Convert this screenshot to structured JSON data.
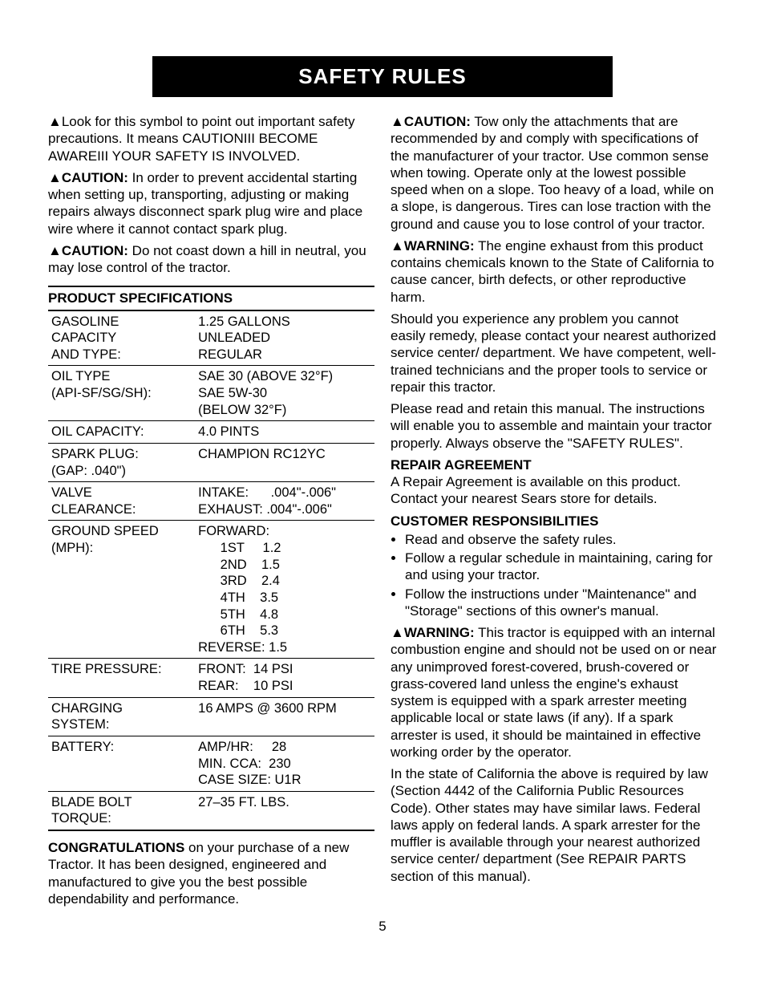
{
  "header": "SAFETY RULES",
  "page_number": "5",
  "left": {
    "intro": "Look for this symbol to point out important safety precautions. It means CAUTIONIII BECOME AWAREIII YOUR SAFETY IS INVOLVED.",
    "caution1_label": "CAUTION:",
    "caution1": " In order to prevent accidental starting when setting up, transporting, adjusting or making repairs always disconnect spark plug wire and place wire where it cannot contact spark plug.",
    "caution2_label": "CAUTION:",
    "caution2": " Do not coast down a hill in neutral, you may lose control of the tractor.",
    "spec_heading": "PRODUCT SPECIFICATIONS",
    "specs": [
      {
        "label": "GASOLINE\nCAPACITY\nAND TYPE:",
        "value": "1.25 GALLONS\nUNLEADED\nREGULAR"
      },
      {
        "label": "OIL TYPE\n(API-SF/SG/SH):",
        "value": "SAE 30 (ABOVE 32°F)\nSAE 5W-30\n(BELOW 32°F)"
      },
      {
        "label": "OIL CAPACITY:",
        "value": "4.0 PINTS"
      },
      {
        "label": "SPARK PLUG:\n(GAP: .040\")",
        "value": "CHAMPION RC12YC"
      },
      {
        "label": "VALVE\nCLEARANCE:",
        "value": "INTAKE:      .004\"-.006\"\nEXHAUST: .004\"-.006\""
      },
      {
        "label": "GROUND SPEED\n(MPH):",
        "value": "FORWARD:\n      1ST     1.2\n      2ND    1.5\n      3RD    2.4\n      4TH    3.5\n      5TH    4.8\n      6TH    5.3\nREVERSE: 1.5"
      },
      {
        "label": "TIRE PRESSURE:",
        "value": "FRONT:  14 PSI\nREAR:    10 PSI"
      },
      {
        "label": "CHARGING\nSYSTEM:",
        "value": "16 AMPS @ 3600 RPM"
      },
      {
        "label": "BATTERY:",
        "value": "AMP/HR:     28\nMIN. CCA:  230\nCASE SIZE: U1R"
      },
      {
        "label": "BLADE BOLT\nTORQUE:",
        "value": "27–35 FT. LBS."
      }
    ],
    "congrats_label": "CONGRATULATIONS",
    "congrats": " on your purchase of a new Tractor. It has been designed, engineered and manufactured to give you the best possible dependability and performance."
  },
  "right": {
    "caution3_label": "CAUTION:",
    "caution3": " Tow only the attachments that are recommended by and comply with specifications of the manufacturer of your tractor. Use common sense when towing. Operate only at the lowest possible speed when on a slope. Too heavy of a load, while on a slope, is dangerous. Tires can lose traction with the ground and cause you to lose control of your tractor.",
    "warn1_label": "WARNING:",
    "warn1": " The engine exhaust from this product contains chemicals known to the State of California to cause cancer, birth defects, or other reproductive harm.",
    "service": "Should you experience any problem you cannot easily remedy, please contact your nearest authorized service center/ department. We have competent, well-trained technicians and the proper tools to service or repair this tractor.",
    "read": "Please read and retain this manual. The instructions will enable you to assemble and maintain your tractor properly. Always observe the \"SAFETY RULES\".",
    "repair_heading": "REPAIR AGREEMENT",
    "repair": "A Repair Agreement is available on this product. Contact your nearest Sears store for details.",
    "cust_heading": "CUSTOMER RESPONSIBILITIES",
    "bullets": [
      "Read and observe the safety rules.",
      "Follow a regular schedule in maintaining, caring for and using your tractor.",
      "Follow the instructions under \"Maintenance\" and \"Storage\" sections of this owner's manual."
    ],
    "warn2_label": "WARNING:",
    "warn2": " This tractor is equipped with an internal combustion engine and should not be used on or near any unimproved forest-covered, brush-covered or grass-covered land unless the engine's exhaust system is equipped with a spark arrester meeting applicable local or state laws (if any). If a spark arrester is used, it should be maintained in effective working order by the operator.",
    "california": "In the state of California the above is required by law (Section 4442 of the California Public Resources Code). Other states may have similar laws. Federal laws apply on federal lands. A spark arrester for the muffler is available through your nearest authorized service center/ department (See REPAIR PARTS section of this manual)."
  }
}
